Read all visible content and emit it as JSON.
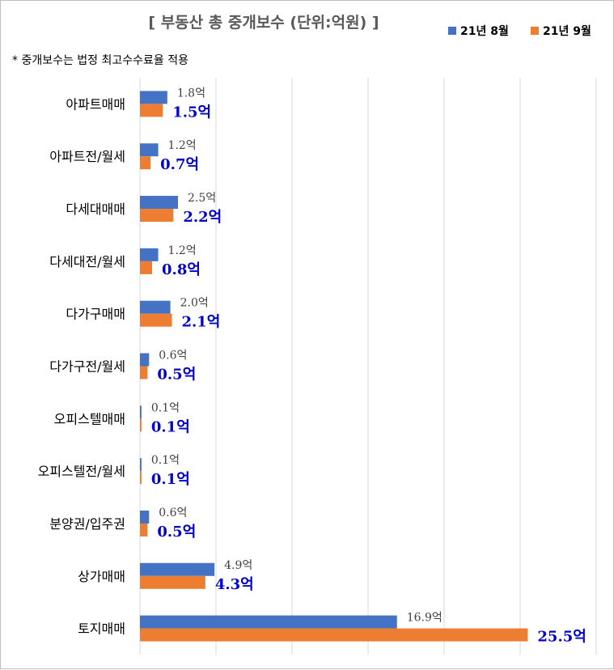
{
  "chart_data": {
    "type": "bar",
    "orientation": "horizontal",
    "title": "[ 부동산 총 중개보수 (단위:억원) ]",
    "note": "* 중개보수는 법정 최고수수료율 적용",
    "unit_suffix": "억",
    "categories": [
      "아파트매매",
      "아파트전/월세",
      "다세대매매",
      "다세대전/월세",
      "다가구매매",
      "다가구전/월세",
      "오피스텔매매",
      "오피스텔전/월세",
      "분양권/입주권",
      "상가매매",
      "토지매매"
    ],
    "series": [
      {
        "name": "21년 8월",
        "color": "#4472C4",
        "values": [
          1.8,
          1.2,
          2.5,
          1.2,
          2.0,
          0.6,
          0.1,
          0.1,
          0.6,
          4.9,
          16.9
        ]
      },
      {
        "name": "21년 9월",
        "color": "#ED7D31",
        "values": [
          1.5,
          0.7,
          2.2,
          0.8,
          2.1,
          0.5,
          0.1,
          0.1,
          0.5,
          4.3,
          25.5
        ]
      }
    ],
    "xlim": [
      0,
      30
    ],
    "grid": true,
    "legend_position": "top-right"
  }
}
